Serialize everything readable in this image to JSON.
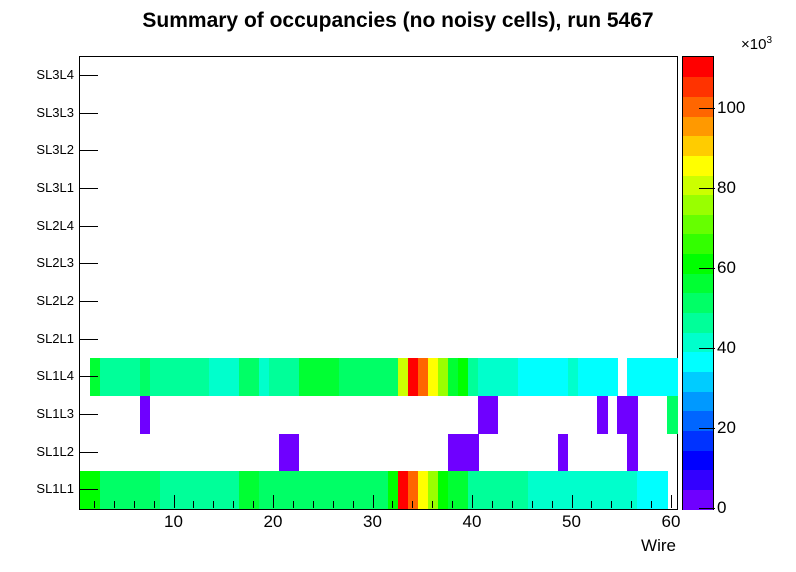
{
  "page": {
    "background": "#ffffff"
  },
  "chart_data": {
    "type": "heatmap",
    "title": "Summary of occupancies (no noisy cells), run 5467",
    "xlabel": "Wire",
    "x_range": [
      1,
      60
    ],
    "x_major_ticks": [
      10,
      20,
      30,
      40,
      50,
      60
    ],
    "x_minor_tick_step": 2,
    "rows_bottom_to_top": [
      "SL1L1",
      "SL1L2",
      "SL1L3",
      "SL1L4",
      "SL2L1",
      "SL2L2",
      "SL2L3",
      "SL2L4",
      "SL3L1",
      "SL3L2",
      "SL3L3",
      "SL3L4"
    ],
    "values_unit": "counts, in thousands (matches colorbar ×10³)",
    "z_scale": {
      "multiplier_base": "×10",
      "multiplier_exponent": "3",
      "ticks": [
        0,
        20,
        40,
        60,
        80,
        100
      ],
      "max": 113
    },
    "palette": [
      "#6F00FF",
      "#3300FF",
      "#0000FF",
      "#0033FF",
      "#0066FF",
      "#0099FF",
      "#00CCFF",
      "#00FFFF",
      "#00FFCC",
      "#00FF99",
      "#00FF66",
      "#00FF33",
      "#00FF00",
      "#33FF00",
      "#66FF00",
      "#99FF00",
      "#CCFF00",
      "#FFFF00",
      "#FFCC00",
      "#FF9900",
      "#FF6600",
      "#FF3300",
      "#FF0000"
    ],
    "series": [
      {
        "name": "SL1L1",
        "values": [
          60,
          60,
          51,
          51,
          51,
          51,
          51,
          51,
          47,
          47,
          47,
          47,
          47,
          47,
          47,
          47,
          57,
          57,
          51,
          51,
          51,
          51,
          51,
          51,
          51,
          51,
          51,
          51,
          51,
          51,
          51,
          60,
          110,
          101,
          86,
          76,
          60,
          57,
          57,
          47,
          47,
          47,
          47,
          47,
          47,
          42,
          42,
          42,
          42,
          42,
          42,
          42,
          42,
          42,
          42,
          42,
          37,
          37,
          37,
          null
        ]
      },
      {
        "name": "SL1L2",
        "values": [
          null,
          null,
          null,
          null,
          null,
          null,
          null,
          null,
          null,
          null,
          null,
          null,
          null,
          null,
          null,
          null,
          null,
          null,
          null,
          null,
          3,
          3,
          null,
          null,
          null,
          null,
          null,
          null,
          null,
          null,
          null,
          null,
          null,
          null,
          null,
          null,
          null,
          3,
          3,
          3,
          null,
          null,
          null,
          null,
          null,
          null,
          null,
          null,
          3,
          null,
          null,
          null,
          null,
          null,
          null,
          3,
          null,
          null,
          null,
          null
        ]
      },
      {
        "name": "SL1L3",
        "values": [
          null,
          null,
          null,
          null,
          null,
          null,
          3,
          null,
          null,
          null,
          null,
          null,
          null,
          null,
          null,
          null,
          null,
          null,
          null,
          null,
          null,
          null,
          null,
          null,
          null,
          null,
          null,
          null,
          null,
          null,
          null,
          null,
          null,
          null,
          null,
          null,
          null,
          null,
          null,
          null,
          3,
          3,
          null,
          null,
          null,
          null,
          null,
          null,
          null,
          null,
          null,
          null,
          3,
          null,
          3,
          3,
          null,
          null,
          null,
          51
        ]
      },
      {
        "name": "SL1L4",
        "values": [
          null,
          57,
          47,
          47,
          47,
          47,
          51,
          47,
          47,
          47,
          47,
          47,
          47,
          42,
          42,
          42,
          51,
          51,
          42,
          47,
          47,
          47,
          57,
          57,
          57,
          57,
          51,
          51,
          51,
          51,
          51,
          51,
          81,
          110,
          101,
          86,
          76,
          57,
          60,
          47,
          42,
          42,
          42,
          42,
          37,
          37,
          37,
          37,
          37,
          42,
          37,
          37,
          37,
          37,
          null,
          37,
          37,
          37,
          37,
          37
        ]
      },
      {
        "name": "SL2L1",
        "values": []
      },
      {
        "name": "SL2L2",
        "values": []
      },
      {
        "name": "SL2L3",
        "values": []
      },
      {
        "name": "SL2L4",
        "values": []
      },
      {
        "name": "SL3L1",
        "values": []
      },
      {
        "name": "SL3L2",
        "values": []
      },
      {
        "name": "SL3L3",
        "values": []
      },
      {
        "name": "SL3L4",
        "values": []
      }
    ]
  }
}
